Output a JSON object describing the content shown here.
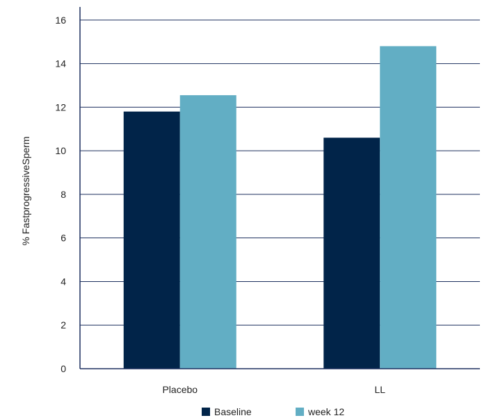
{
  "chart_data": {
    "type": "bar",
    "categories": [
      "Placebo",
      "LL"
    ],
    "series": [
      {
        "name": "Baseline",
        "values": [
          11.8,
          10.6
        ],
        "color": "#012449"
      },
      {
        "name": "week 12",
        "values": [
          12.55,
          14.8
        ],
        "color": "#62aec4"
      }
    ],
    "title": "",
    "xlabel": "",
    "ylabel": "% FastprogressiveSperm",
    "ylim": [
      0,
      16
    ],
    "yticks": [
      0,
      2,
      4,
      6,
      8,
      10,
      12,
      14,
      16
    ],
    "grid": "horizontal",
    "legend_position": "bottom"
  },
  "colors": {
    "grid": "#1b2f5e",
    "axis": "#1b2f5e"
  }
}
